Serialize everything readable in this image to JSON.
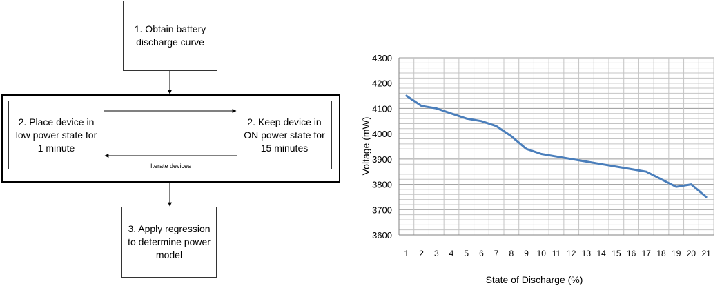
{
  "diagram": {
    "nodes": {
      "obtain_curve": "1. Obtain battery\ndischarge curve",
      "low_power": "2. Place device in\nlow power state for\n1 minute",
      "on_power": "2. Keep device in\nON power state for\n15 minutes",
      "regression": "3. Apply regression\nto determine power\nmodel"
    },
    "edge_label": "Iterate devices"
  },
  "chart_data": {
    "type": "line",
    "title": "",
    "xlabel": "State of Discharge (%)",
    "ylabel": "Voltage (mW)",
    "x": [
      1,
      2,
      3,
      4,
      5,
      6,
      7,
      8,
      9,
      10,
      11,
      12,
      13,
      14,
      15,
      16,
      17,
      18,
      19,
      20,
      21
    ],
    "series": [
      {
        "values": [
          4150,
          4110,
          4100,
          4080,
          4060,
          4050,
          4030,
          3990,
          3940,
          3920,
          3910,
          3900,
          3890,
          3880,
          3870,
          3860,
          3850,
          3820,
          3790,
          3800,
          3750
        ]
      }
    ],
    "ylim": [
      3600,
      4300
    ],
    "yticks": [
      3600,
      3700,
      3800,
      3900,
      4000,
      4100,
      4200,
      4300
    ],
    "grid": true,
    "line_color": "#4a7ebb"
  }
}
